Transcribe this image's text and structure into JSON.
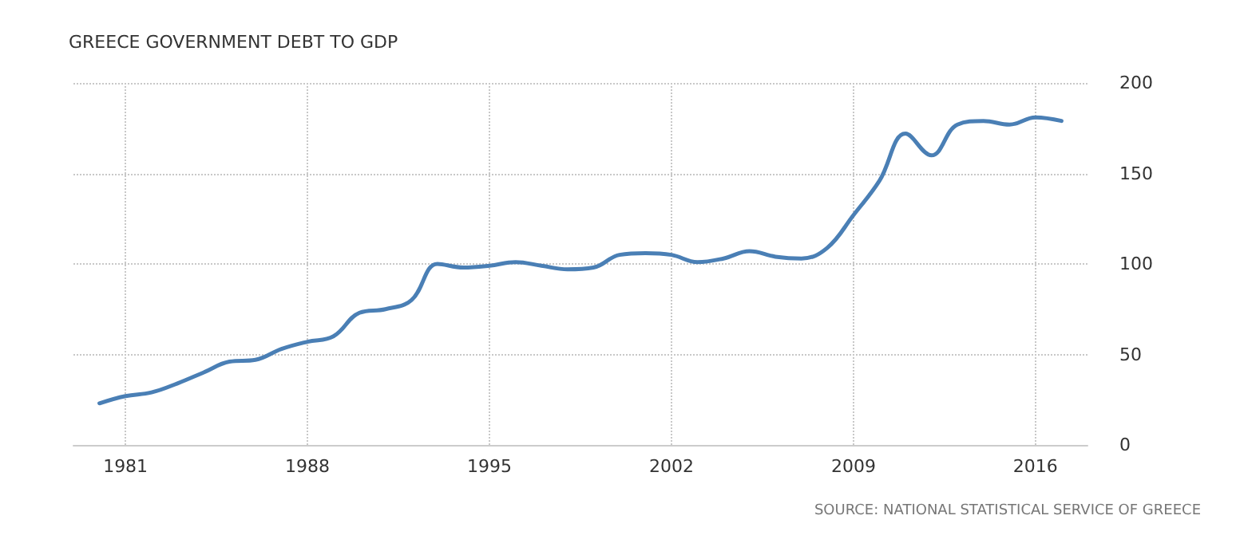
{
  "chart_data": {
    "type": "line",
    "title": "GREECE GOVERNMENT DEBT TO GDP",
    "x": [
      1980,
      1981,
      1982,
      1983,
      1984,
      1985,
      1986,
      1987,
      1988,
      1989,
      1990,
      1991,
      1992,
      1993,
      1994,
      1995,
      1996,
      1997,
      1998,
      1999,
      2000,
      2001,
      2002,
      2003,
      2004,
      2005,
      2006,
      2007,
      2008,
      2009,
      2010,
      2011,
      2012,
      2013,
      2014,
      2015,
      2016,
      2017
    ],
    "series": [
      {
        "color": "#4a7fb5",
        "values": [
          23,
          27,
          29,
          34,
          40,
          46,
          47,
          53,
          57,
          60,
          73,
          75,
          80,
          100,
          98,
          99,
          101,
          99,
          97,
          98,
          105,
          106,
          105,
          101,
          103,
          107,
          104,
          103,
          109,
          127,
          146,
          172,
          160,
          177,
          179,
          177,
          181,
          179
        ]
      }
    ],
    "xlim": [
      1979,
      2018
    ],
    "xticks": [
      1981,
      1988,
      1995,
      2002,
      2009,
      2016
    ],
    "ylim": [
      0,
      200
    ],
    "yticks": [
      0,
      50,
      100,
      150,
      200
    ],
    "grid": true,
    "marker": "none",
    "line_style": "solid",
    "annotations": [
      "SOURCE: NATIONAL STATISTICAL SERVICE OF GREECE"
    ]
  }
}
